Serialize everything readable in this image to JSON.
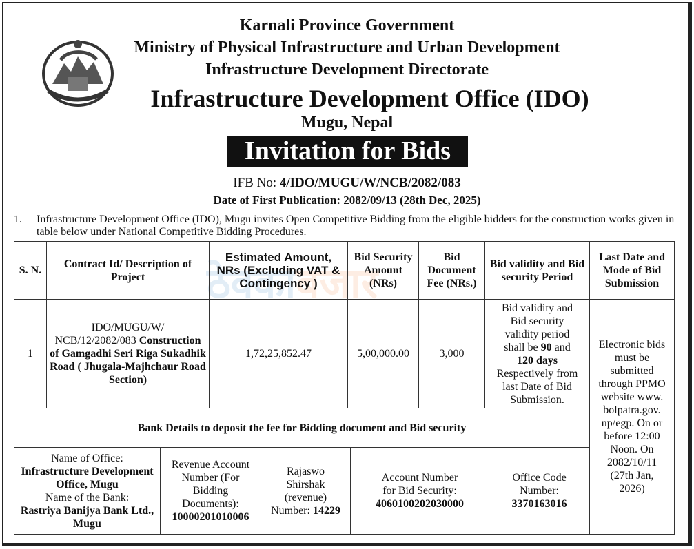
{
  "header": {
    "line1": "Karnali Province Government",
    "line2": "Ministry of Physical Infrastructure and Urban Development",
    "line3": "Infrastructure Development Directorate",
    "office": "Infrastructure Development Office (IDO)",
    "location": "Mugu, Nepal",
    "title": "Invitation for Bids",
    "ifb_label": "IFB No: ",
    "ifb_no": "4/IDO/MUGU/W/NCB/2082/083",
    "publication": "Date of First Publication: 2082/09/13 (28th Dec, 2025)"
  },
  "watermark": {
    "part1": "ठेक्का",
    "part2": "बजार"
  },
  "para": {
    "num": "1.",
    "text": "Infrastructure Development Office (IDO), Mugu invites Open Competitive Bidding from the eligible bidders for the construction works given in table below under National Competitive Bidding Procedures."
  },
  "table": {
    "headers": [
      "S. N.",
      "Contract Id/ Description of Project",
      "Estimated Amount, NRs (Excluding VAT & Contingency )",
      "Bid Security Amount (NRs)",
      "Bid Document Fee (NRs.)",
      "Bid validity and Bid security Period",
      "Last Date and Mode of Bid Submission"
    ],
    "row": {
      "sn": "1",
      "contract_id": "IDO/MUGU/W/ NCB/12/2082/083",
      "description": "Construction of Gamgadhi Seri Riga Sukadhik Road ( Jhugala-Majhchaur Road Section)",
      "estimated": "1,72,25,852.47",
      "security": "5,00,000.00",
      "fee": "3,000",
      "validity_a": "Bid validity and Bid security validity period shall be ",
      "validity_90": "90",
      "validity_and": " and ",
      "validity_120": "120 days",
      "validity_b": " Respectively from last Date of Bid Submission.",
      "submission": "Electronic bids must be submitted through PPMO website www. bolpatra.gov. np/egp. On or before 12:00 Noon. On 2082/10/11 (27th Jan, 2026)"
    },
    "bank_heading": "Bank Details to deposit the fee for  Bidding document and Bid security",
    "bank": {
      "office_label": "Name of Office:",
      "office": "Infrastructure Development Office, Mugu",
      "bank_label": "Name of the Bank:",
      "bank": "Rastriya Banijya Bank Ltd., Mugu",
      "revenue_label": "Revenue Account Number (For Bidding Documents):",
      "revenue": "10000201010006",
      "rajaswo_label": "Rajaswo Shirshak (revenue) Number: ",
      "rajaswo": "14229",
      "security_label": "Account Number for Bid Security:",
      "security": "4060100202030000",
      "code_label": "Office Code Number:",
      "code": "3370163016"
    }
  }
}
